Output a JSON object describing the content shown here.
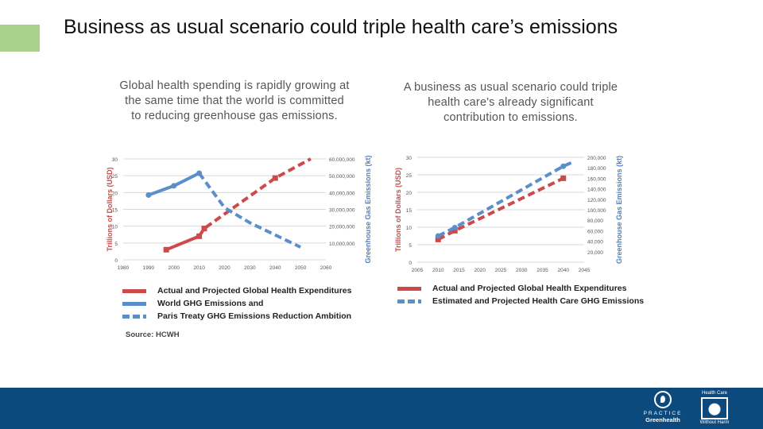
{
  "slide": {
    "title": "Business as usual scenario could triple health care’s emissions",
    "caption_left": "Global health spending is rapidly growing at the same time that the world is committed to reducing greenhouse gas emissions.",
    "caption_right": "A business as usual scenario could triple health care's already significant contribution to emissions.",
    "source": "Source: HCWH",
    "accent_color": "#a9d18e",
    "footer_color": "#0c4a7e"
  },
  "logos": {
    "practice_greenhealth": {
      "line1": "PRACTICE",
      "line2": "Greenhealth"
    },
    "hcwh": {
      "line1": "Health Care",
      "line2": "Without Harm"
    }
  },
  "chart_data": [
    {
      "type": "line",
      "title": "",
      "xlabel": "",
      "ylabel": "Trillions of Dollars (USD)",
      "y2label": "Greenhouse Gas Emissions (kt)",
      "xlim": [
        1980,
        2060
      ],
      "ylim": [
        0,
        30
      ],
      "y2lim": [
        0,
        60000000
      ],
      "xticks": [
        "1980",
        "1990",
        "2000",
        "2010",
        "2020",
        "2030",
        "2040",
        "2050",
        "2060"
      ],
      "yticks": [
        "0",
        "5",
        "10",
        "15",
        "20",
        "25",
        "30"
      ],
      "y2ticks": [
        "10,000,000",
        "20,000,000",
        "30,000,000",
        "40,000,000",
        "50,000,000",
        "60,000,000"
      ],
      "grid": true,
      "series": [
        {
          "name": "Actual and Projected Global Health Expenditures",
          "axis": "left",
          "color": "#cd4a4a",
          "x": [
            1997,
            2010
          ],
          "y": [
            3,
            7
          ],
          "markers": [
            1997,
            2010
          ]
        },
        {
          "name": "Actual and Projected Global Health Expenditures",
          "axis": "left",
          "color": "#cd4a4a",
          "dashed": true,
          "x": [
            2010,
            2012,
            2040,
            2054
          ],
          "y": [
            7,
            9.3,
            24.3,
            30
          ],
          "markers": [
            2012,
            2040
          ]
        },
        {
          "name": "World GHG Emissions and",
          "axis": "right",
          "color": "#5b8fc9",
          "x": [
            1990,
            2000,
            2010
          ],
          "y": [
            38500000,
            44000000,
            51500000
          ],
          "markers": [
            1990,
            2000,
            2010
          ]
        },
        {
          "name": "Paris Treaty GHG Emissions Reduction Ambition",
          "axis": "right",
          "color": "#5b8fc9",
          "dashed": true,
          "x": [
            2010,
            2020,
            2030,
            2050
          ],
          "y": [
            51500000,
            31000000,
            22000000,
            7500000
          ]
        }
      ],
      "legend": [
        {
          "label": "Actual and Projected Global Health Expenditures",
          "color": "#cd4a4a",
          "style": "solid"
        },
        {
          "label": "World GHG Emissions and",
          "color": "#5b8fc9",
          "style": "solid"
        },
        {
          "label": "Paris Treaty GHG Emissions Reduction Ambition",
          "color": "#5b8fc9",
          "style": "dashed"
        }
      ]
    },
    {
      "type": "line",
      "title": "",
      "xlabel": "",
      "ylabel": "Trillions of Dollars (USD)",
      "y2label": "Greenhouse Gas Emissions (kt)",
      "xlim": [
        2005,
        2045
      ],
      "ylim": [
        0,
        30
      ],
      "y2lim": [
        0,
        200000
      ],
      "xticks": [
        "2005",
        "2010",
        "2015",
        "2020",
        "2025",
        "2030",
        "2035",
        "2040",
        "2045"
      ],
      "yticks": [
        "0",
        "5",
        "10",
        "15",
        "20",
        "25",
        "30"
      ],
      "y2ticks": [
        "20,000",
        "40,000",
        "60,000",
        "80,000",
        "100,000",
        "120,000",
        "140,000",
        "160,000",
        "180,000",
        "200,000"
      ],
      "grid": true,
      "series": [
        {
          "name": "Actual and Projected Global Health Expenditures",
          "axis": "left",
          "color": "#cd4a4a",
          "dashed": true,
          "x": [
            2010,
            2014,
            2040,
            2041
          ],
          "y": [
            6.5,
            9,
            24,
            24.4
          ],
          "markers": [
            2010,
            2014,
            2040
          ]
        },
        {
          "name": "Estimated and Projected Health Care GHG Emissions",
          "axis": "right",
          "color": "#5b8fc9",
          "dashed": true,
          "x": [
            2010,
            2014,
            2040,
            2042
          ],
          "y": [
            50000,
            66000,
            183000,
            190000
          ],
          "markers": [
            2010,
            2014,
            2040
          ]
        }
      ],
      "legend": [
        {
          "label": "Actual and Projected Global Health Expenditures",
          "color": "#cd4a4a",
          "style": "solid"
        },
        {
          "label": "Estimated and Projected Health Care GHG Emissions",
          "color": "#5b8fc9",
          "style": "dashed"
        }
      ]
    }
  ]
}
